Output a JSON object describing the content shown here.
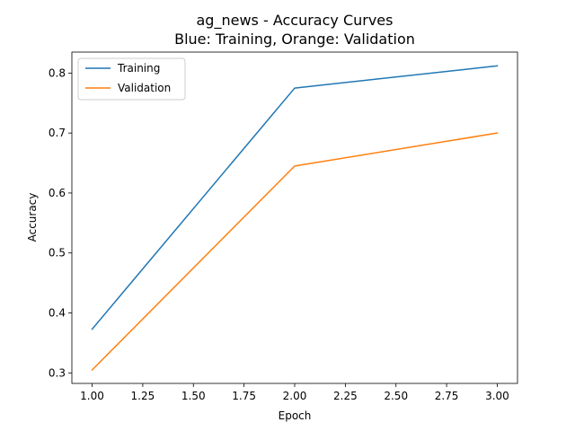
{
  "chart_data": {
    "type": "line",
    "title": "ag_news - Accuracy Curves",
    "subtitle": "Blue: Training, Orange: Validation",
    "xlabel": "Epoch",
    "ylabel": "Accuracy",
    "x": [
      1,
      2,
      3
    ],
    "xlim": [
      0.9,
      3.1
    ],
    "ylim": [
      0.2825,
      0.835
    ],
    "xticks": [
      "1.00",
      "1.25",
      "1.50",
      "1.75",
      "2.00",
      "2.25",
      "2.50",
      "2.75",
      "3.00"
    ],
    "yticks": [
      "0.3",
      "0.4",
      "0.5",
      "0.6",
      "0.7",
      "0.8"
    ],
    "grid": false,
    "legend_position": "upper-left",
    "series": [
      {
        "name": "Training",
        "color": "#1f77b4",
        "values": [
          0.373,
          0.775,
          0.812
        ]
      },
      {
        "name": "Validation",
        "color": "#ff7f0e",
        "values": [
          0.305,
          0.645,
          0.7
        ]
      }
    ]
  }
}
